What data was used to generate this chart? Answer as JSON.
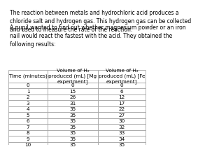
{
  "para1": "The reaction between metals and hydrochloric acid produces a\nchloride salt and hydrogen gas. This hydrogen gas can be collected\nand used to measure the rate of the reaction.",
  "para2": "A pupil wanted to find out whether magnesium powder or an iron\nnail would react the fastest with the acid. They obtained the\nfollowing results:",
  "col_headers": [
    "Time (minutes)",
    "Volume of H₂\nproduced (mL) [Mg\nexperiment]",
    "Volume of H₂\nproduced (mL) [Fe\nexperiment]"
  ],
  "time": [
    0,
    1,
    2,
    3,
    4,
    5,
    6,
    7,
    8,
    9,
    10
  ],
  "mg_vol": [
    0,
    15,
    26,
    31,
    35,
    35,
    35,
    35,
    35,
    35,
    35
  ],
  "fe_vol": [
    0,
    6,
    12,
    17,
    22,
    27,
    30,
    32,
    33,
    34,
    35
  ],
  "background": "#ffffff",
  "text_color": "#000000",
  "header_bg": "#ffffff",
  "grid_color": "#999999",
  "font_size_text": 5.5,
  "font_size_table": 5.2,
  "fig_width": 2.0,
  "fig_height": 1.97
}
